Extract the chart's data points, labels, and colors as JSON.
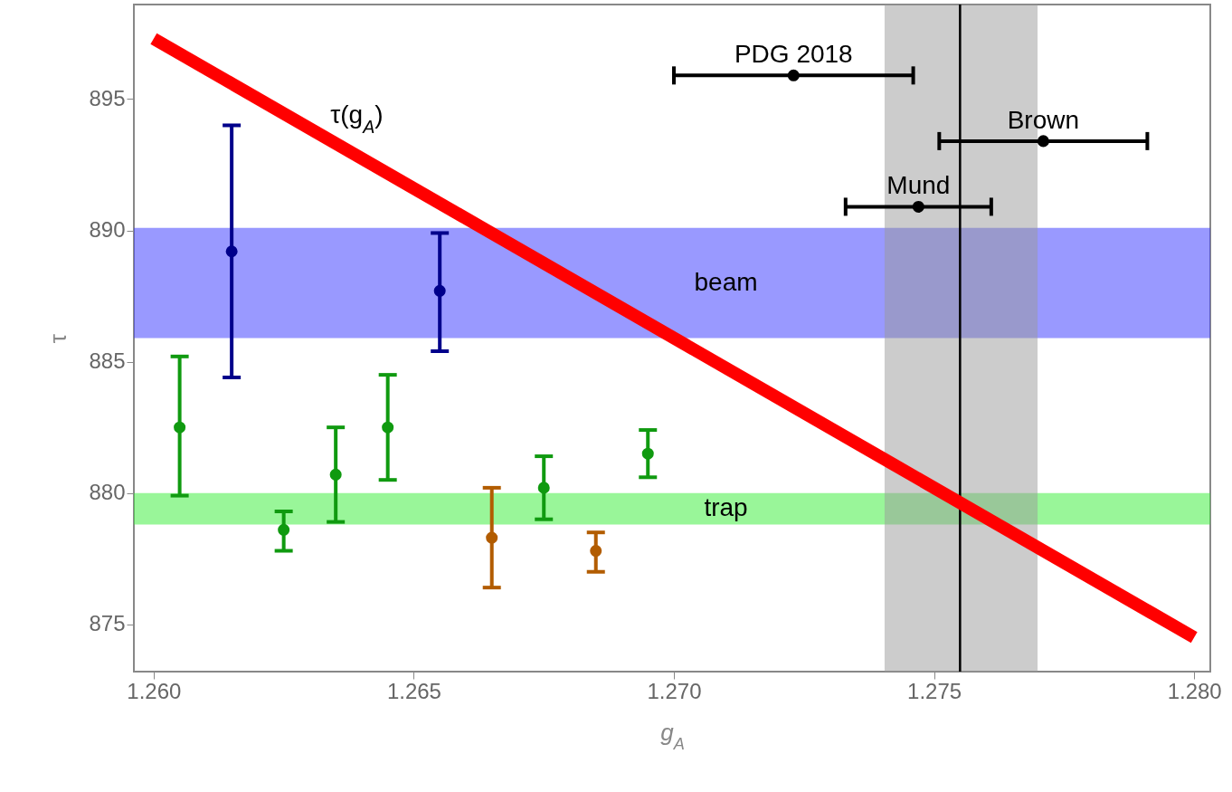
{
  "chart_data": {
    "type": "scatter",
    "xlabel": "g$_{A}$",
    "ylabel": "τ",
    "xlim": [
      1.25962,
      1.28031
    ],
    "ylim": [
      873.2,
      898.6
    ],
    "xticks": [
      {
        "value": 1.26,
        "label": "1.260"
      },
      {
        "value": 1.265,
        "label": "1.265"
      },
      {
        "value": 1.27,
        "label": "1.270"
      },
      {
        "value": 1.275,
        "label": "1.275"
      },
      {
        "value": 1.28,
        "label": "1.280"
      }
    ],
    "yticks": [
      875,
      880,
      885,
      890,
      895
    ],
    "grid": false,
    "marker": "circle",
    "series": [
      {
        "type": "line",
        "name": "τ(g$_{A}$)",
        "marker": "none",
        "color": "#ff0000",
        "x": [
          1.26,
          1.28
        ],
        "values": [
          897.3,
          874.5
        ]
      },
      {
        "color": "#109a10",
        "x": [
          1.2605,
          1.2625,
          1.2635,
          1.2645,
          1.2675,
          1.2695
        ],
        "values": [
          882.5,
          878.6,
          880.7,
          882.5,
          880.2,
          881.5
        ],
        "errors": [
          [
            879.9,
            885.2
          ],
          [
            877.8,
            879.3
          ],
          [
            878.9,
            882.5
          ],
          [
            880.5,
            884.5
          ],
          [
            879.0,
            881.4
          ],
          [
            880.6,
            882.4
          ]
        ]
      },
      {
        "color": "#00008b",
        "x": [
          1.2615,
          1.2655
        ],
        "values": [
          889.2,
          887.7
        ],
        "errors": [
          [
            884.4,
            894.0
          ],
          [
            885.4,
            889.9
          ]
        ]
      },
      {
        "color": "#b25c00",
        "x": [
          1.2665,
          1.2685
        ],
        "values": [
          878.3,
          877.8
        ],
        "errors": [
          [
            876.4,
            880.2
          ],
          [
            877.0,
            878.5
          ]
        ]
      },
      {
        "color": "#000000",
        "x": [
          1.2723,
          1.2771,
          1.2747
        ],
        "values": [
          895.9,
          893.4,
          890.9
        ],
        "xerrors": [
          [
            1.27,
            1.2746
          ],
          [
            1.2751,
            1.2791
          ],
          [
            1.2733,
            1.2761
          ]
        ]
      }
    ],
    "bands": [
      {
        "axis": "y",
        "from": 885.9,
        "to": 890.1,
        "label": "beam",
        "color": "#3333ff"
      },
      {
        "axis": "y",
        "from": 878.8,
        "to": 880.0,
        "label": "trap",
        "color": "#33ee33"
      },
      {
        "axis": "x",
        "from": 1.27405,
        "to": 1.27699,
        "color": "#999999"
      }
    ],
    "ref_lines": [
      {
        "axis": "x",
        "value": 1.2755,
        "color": "#000000"
      }
    ],
    "annotations": [
      {
        "text": "PDG 2018",
        "x": 1.2723,
        "y": 895.9
      },
      {
        "text": "Brown",
        "x": 1.2771,
        "y": 893.4
      },
      {
        "text": "Mund",
        "x": 1.2747,
        "y": 890.9
      }
    ]
  }
}
